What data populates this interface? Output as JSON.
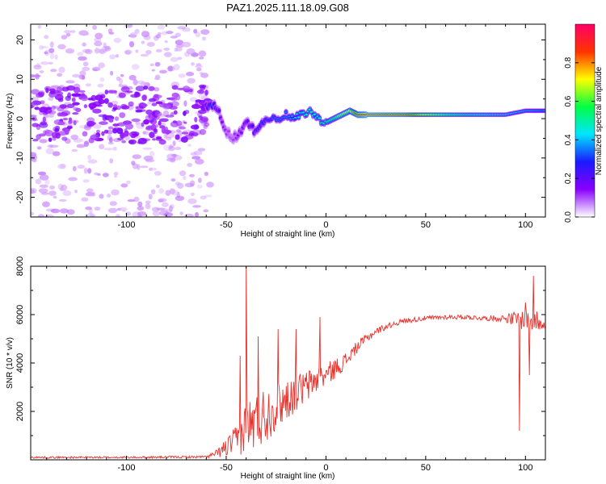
{
  "title": "PAZ1.2025.111.18.09.G08",
  "chart_data": [
    {
      "type": "heatmap",
      "xlabel": "Height of straight line (km)",
      "ylabel": "Frequency (Hz)",
      "xlim": [
        -148,
        110
      ],
      "ylim": [
        -25,
        24
      ],
      "xticks": [
        -100,
        -50,
        0,
        50,
        100
      ],
      "yticks": [
        -20,
        -10,
        0,
        10,
        20
      ],
      "xtick_labels": [
        "-100",
        "-50",
        "0",
        "50",
        "100"
      ],
      "ytick_labels": [
        "-20",
        "-10",
        "0",
        "10",
        "20"
      ],
      "colorbar": {
        "label": "Normalized spectral amplitude",
        "range": [
          0,
          1
        ],
        "ticks": [
          0.0,
          0.2,
          0.4,
          0.6,
          0.8
        ],
        "tick_labels": [
          "0.0",
          "0.2",
          "0.4",
          "0.6",
          "0.8"
        ],
        "colors": [
          "#ffffff",
          "#8a00ff",
          "#1a1aff",
          "#00e5ff",
          "#00ff44",
          "#ffff00",
          "#ff3300",
          "#ff0066"
        ]
      },
      "ridge": {
        "x": [
          -148,
          -130,
          -110,
          -90,
          -75,
          -62,
          -58,
          -54,
          -50,
          -47,
          -44,
          -40,
          -36,
          -32,
          -28,
          -24,
          -20,
          -16,
          -12,
          -8,
          -4,
          0,
          4,
          8,
          12,
          16,
          20,
          30,
          40,
          50,
          60,
          70,
          80,
          90,
          100,
          110
        ],
        "freq": [
          1,
          1,
          0,
          1,
          1,
          2,
          4,
          2,
          -3,
          -5,
          -4,
          -1,
          -3,
          -1,
          0,
          0,
          1,
          0,
          1,
          2,
          0,
          -1,
          0,
          1,
          2,
          1,
          1,
          1,
          1,
          1,
          1,
          1,
          1,
          1,
          2,
          2
        ],
        "amplitude": [
          0.08,
          0.08,
          0.08,
          0.08,
          0.08,
          0.1,
          0.3,
          0.2,
          0.12,
          0.1,
          0.15,
          0.2,
          0.25,
          0.3,
          0.3,
          0.35,
          0.35,
          0.4,
          0.45,
          0.5,
          0.45,
          0.5,
          0.55,
          0.65,
          0.7,
          0.9,
          1.0,
          0.95,
          0.9,
          0.7,
          0.6,
          0.55,
          0.55,
          0.5,
          0.45,
          0.4
        ]
      }
    },
    {
      "type": "line",
      "xlabel": "Height of straight line (km)",
      "ylabel": "SNR (10 * v/v)",
      "xlim": [
        -148,
        110
      ],
      "ylim": [
        0,
        8000
      ],
      "xticks": [
        -100,
        -50,
        0,
        50,
        100
      ],
      "yticks": [
        2000,
        4000,
        6000,
        8000
      ],
      "xtick_labels": [
        "-100",
        "-50",
        "0",
        "50",
        "100"
      ],
      "ytick_labels": [
        "2000",
        "4000",
        "6000",
        "8000"
      ],
      "color": "#e8302b",
      "envelope": {
        "x": [
          -148,
          -100,
          -60,
          -55,
          -50,
          -45,
          -42,
          -40,
          -35,
          -30,
          -25,
          -20,
          -15,
          -10,
          -5,
          0,
          5,
          10,
          15,
          20,
          25,
          30,
          35,
          40,
          50,
          60,
          70,
          80,
          90,
          95,
          100,
          105,
          110
        ],
        "base": [
          100,
          100,
          120,
          250,
          500,
          800,
          1100,
          1300,
          1600,
          1900,
          2200,
          2500,
          2800,
          3000,
          3300,
          3500,
          3800,
          4100,
          4600,
          5000,
          5300,
          5500,
          5650,
          5750,
          5850,
          5900,
          5900,
          5850,
          5850,
          5800,
          5800,
          5750,
          5700
        ],
        "noise": [
          40,
          40,
          50,
          150,
          400,
          600,
          900,
          1200,
          1200,
          1200,
          1000,
          900,
          800,
          700,
          600,
          500,
          400,
          350,
          250,
          200,
          150,
          130,
          120,
          110,
          100,
          100,
          100,
          100,
          150,
          350,
          450,
          500,
          300
        ]
      },
      "spikes": [
        {
          "x": -40,
          "y": 8000
        },
        {
          "x": -43,
          "y": 4300
        },
        {
          "x": -34,
          "y": 5100
        },
        {
          "x": -24,
          "y": 5400
        },
        {
          "x": -15,
          "y": 5400
        },
        {
          "x": -3,
          "y": 5900
        },
        {
          "x": 97,
          "y": 1200
        },
        {
          "x": 100,
          "y": 6500
        },
        {
          "x": 102,
          "y": 3500
        },
        {
          "x": 104,
          "y": 7600
        }
      ]
    }
  ]
}
